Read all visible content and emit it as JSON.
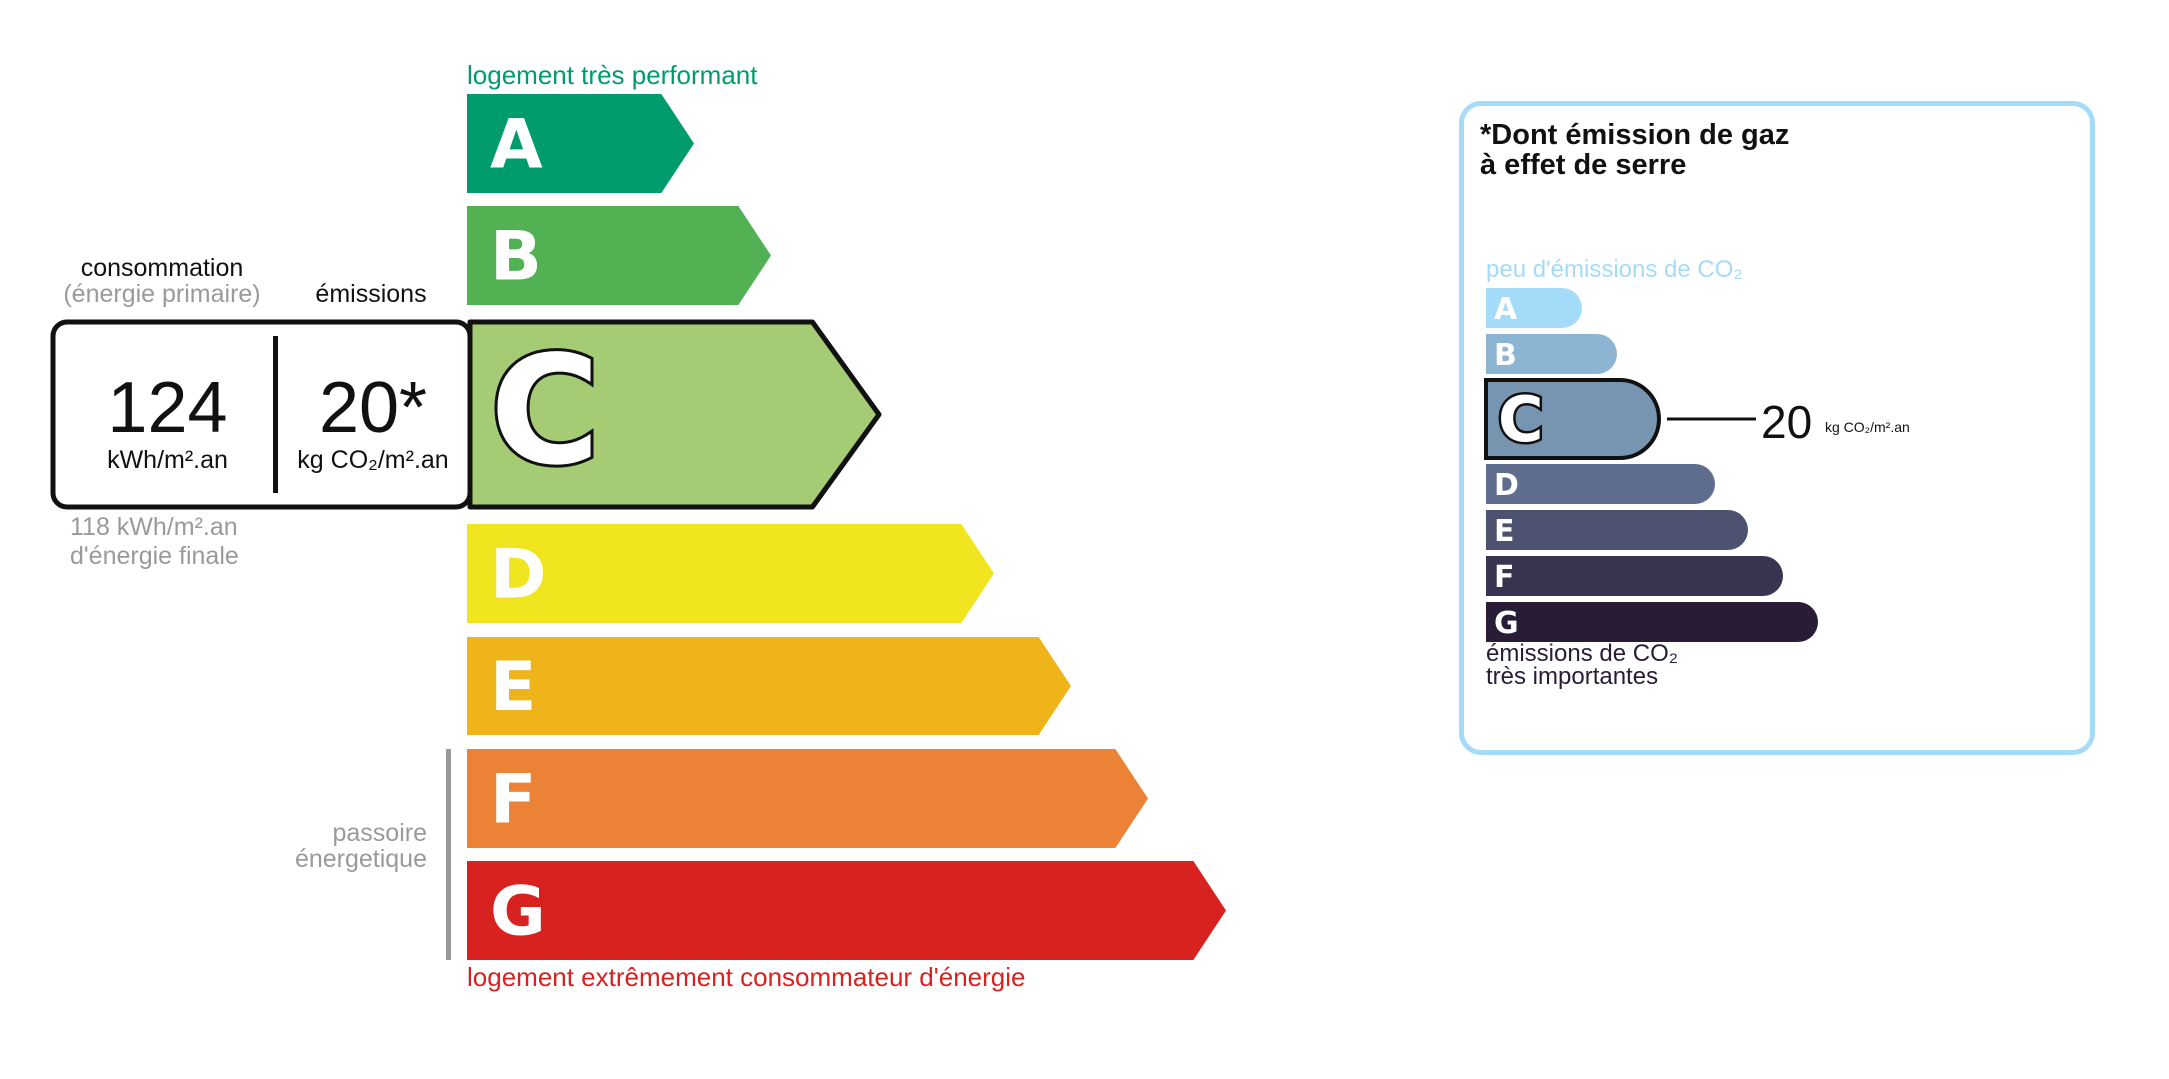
{
  "energy_label": {
    "top_caption": "logement très performant",
    "bottom_caption": "logement extrêmement consommateur d'énergie",
    "passoire_label_1": "passoire",
    "passoire_label_2": "énergetique",
    "classes": [
      {
        "letter": "A",
        "color": "#009c6d"
      },
      {
        "letter": "B",
        "color": "#52b153"
      },
      {
        "letter": "C",
        "color": "#a5cc74"
      },
      {
        "letter": "D",
        "color": "#f0e51e"
      },
      {
        "letter": "E",
        "color": "#efb419"
      },
      {
        "letter": "F",
        "color": "#eb8235"
      },
      {
        "letter": "G",
        "color": "#d7221f"
      }
    ],
    "current_class": "C",
    "consumption_heading": "consommation",
    "consumption_subheading": "(énergie primaire)",
    "emissions_heading": "émissions",
    "consumption_value": "124",
    "consumption_unit": "kWh/m².an",
    "emissions_value": "20*",
    "emissions_unit": "kg CO₂/m².an",
    "final_energy_value": "118 kWh/m².an",
    "final_energy_label": "d'énergie finale"
  },
  "ges_panel": {
    "title_line1": "*Dont émission de gaz",
    "title_line2": "à effet de serre",
    "top_caption": "peu d'émissions de CO₂",
    "bottom_caption_1": "émissions de CO₂",
    "bottom_caption_2": "très importantes",
    "border_color": "#a4dbf8",
    "classes": [
      {
        "letter": "A",
        "color": "#a4dbf8"
      },
      {
        "letter": "B",
        "color": "#8cb4d3"
      },
      {
        "letter": "C",
        "color": "#7794b1"
      },
      {
        "letter": "D",
        "color": "#5f6e8e"
      },
      {
        "letter": "E",
        "color": "#4d5271"
      },
      {
        "letter": "F",
        "color": "#393551"
      },
      {
        "letter": "G",
        "color": "#291c37"
      }
    ],
    "current_class": "C",
    "value": "20",
    "unit": "kg CO₂/m².an"
  }
}
